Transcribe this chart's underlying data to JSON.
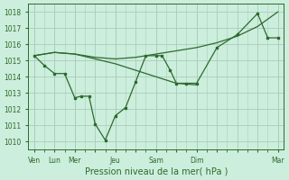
{
  "bg_color": "#cceedd",
  "grid_color": "#aaccbb",
  "line_color": "#2d6a2d",
  "xlabel": "Pression niveau de la mer( hPa )",
  "xlabel_color": "#2d6a2d",
  "ylim": [
    1009.5,
    1018.5
  ],
  "yticks": [
    1010,
    1011,
    1012,
    1013,
    1014,
    1015,
    1016,
    1017,
    1018
  ],
  "xtick_labels": [
    "Ven",
    "Lun",
    "Mer",
    "",
    "Jeu",
    "",
    "Sam",
    "",
    "Dim",
    "",
    "",
    "",
    "Mar"
  ],
  "xtick_positions": [
    0,
    1,
    2,
    3,
    4,
    5,
    6,
    7,
    8,
    9,
    10,
    11,
    12
  ],
  "vline_positions": [
    0,
    1,
    2,
    4,
    6,
    8,
    12
  ],
  "series_jagged_x": [
    0,
    0.5,
    1,
    1.5,
    2,
    2.3,
    2.7,
    3,
    3.5,
    4,
    4.5,
    5,
    5.5,
    6,
    6.3,
    6.7,
    7,
    7.5,
    8,
    9,
    10,
    11,
    11.5,
    12
  ],
  "series_jagged_y": [
    1015.3,
    1014.7,
    1014.2,
    1014.2,
    1012.7,
    1012.8,
    1012.8,
    1011.1,
    1010.1,
    1011.6,
    1012.1,
    1013.7,
    1015.3,
    1015.3,
    1015.3,
    1014.4,
    1013.6,
    1013.6,
    1013.6,
    1015.8,
    1016.6,
    1017.9,
    1016.4,
    1016.4
  ],
  "series_smooth_x": [
    0,
    1,
    2,
    3,
    4,
    5,
    6,
    7,
    8,
    9,
    10,
    11,
    12
  ],
  "series_smooth_y": [
    1015.3,
    1015.5,
    1015.4,
    1015.2,
    1015.1,
    1015.2,
    1015.4,
    1015.6,
    1015.8,
    1016.1,
    1016.5,
    1017.1,
    1018.0
  ],
  "series_declining_x": [
    0,
    1,
    2,
    3,
    4,
    5,
    6,
    7,
    8
  ],
  "series_declining_y": [
    1015.3,
    1015.5,
    1015.4,
    1015.1,
    1014.8,
    1014.4,
    1014.0,
    1013.6,
    1013.5
  ],
  "figsize": [
    3.2,
    2.0
  ],
  "dpi": 100
}
